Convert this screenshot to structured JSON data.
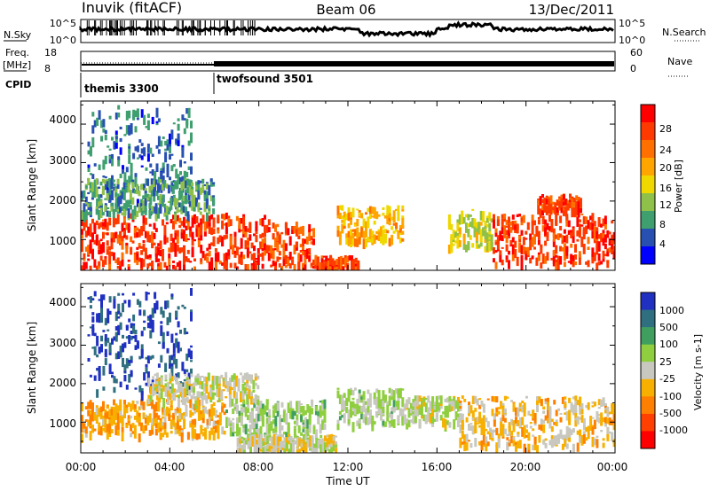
{
  "header": {
    "station": "Inuvik (fitACF)",
    "beam": "Beam 06",
    "date": "13/Dec/2011"
  },
  "noise_panel": {
    "left_label": "N.Sky",
    "right_label": "N.Search",
    "left_ticks": [
      "10^5",
      "10^0"
    ],
    "right_ticks": [
      "10^5",
      "10^0"
    ]
  },
  "freq_panel": {
    "left_label_1": "Freq.",
    "left_label_2": "[MHz]",
    "right_label": "Nave",
    "left_ticks": [
      "18",
      "8"
    ],
    "right_ticks": [
      "60",
      "0"
    ]
  },
  "cpid_panel": {
    "label": "CPID",
    "segments": [
      {
        "name": "themis 3300",
        "start_hour": 0,
        "end_hour": 6
      },
      {
        "name": "twofsound 3501",
        "start_hour": 6,
        "end_hour": 24
      }
    ]
  },
  "time_axis": {
    "label": "Time UT",
    "tick_labels": [
      "00:00",
      "04:00",
      "08:00",
      "12:00",
      "16:00",
      "20:00",
      "00:00"
    ]
  },
  "range_axis": {
    "label": "Slant Range [km]",
    "tick_labels": [
      "1000",
      "2000",
      "3000",
      "4000"
    ]
  },
  "power_colorbar": {
    "label": "Power [dB]",
    "tick_labels": [
      "28",
      "24",
      "20",
      "16",
      "12",
      "8",
      "4"
    ],
    "colors": [
      "#ff0000",
      "#ff3a00",
      "#ff7000",
      "#ffa500",
      "#eed800",
      "#8fc04a",
      "#3f9f6f",
      "#2850b0",
      "#0000ff"
    ]
  },
  "velocity_colorbar": {
    "label": "Velocity [m s-1]",
    "tick_labels": [
      "1000",
      "500",
      "100",
      "25",
      "-25",
      "-100",
      "-500",
      "-1000"
    ],
    "colors": [
      "#2030c0",
      "#2f6f7f",
      "#3f9f5f",
      "#8fcf3f",
      "#c8c8c0",
      "#f8b000",
      "#ff8000",
      "#ff4000",
      "#ff0000"
    ]
  },
  "chart_data": [
    {
      "type": "heatmap",
      "title": "Power",
      "xlabel": "Time UT",
      "ylabel": "Slant Range [km]",
      "xlim": [
        0,
        24
      ],
      "ylim": [
        200,
        4600
      ],
      "colorbar_label": "Power [dB]",
      "colorbar_range": [
        0,
        30
      ],
      "bands": [
        {
          "hour_start": 0.0,
          "hour_end": 8.5,
          "range_low": 300,
          "range_high": 1700,
          "value": 27
        },
        {
          "hour_start": 8.5,
          "hour_end": 10.5,
          "range_low": 300,
          "range_high": 1500,
          "value": 26
        },
        {
          "hour_start": 10.5,
          "hour_end": 12.5,
          "range_low": 300,
          "range_high": 600,
          "value": 26
        },
        {
          "hour_start": 11.5,
          "hour_end": 14.5,
          "range_low": 1000,
          "range_high": 1900,
          "value": 18
        },
        {
          "hour_start": 16.5,
          "hour_end": 18.5,
          "range_low": 800,
          "range_high": 1800,
          "value": 14
        },
        {
          "hour_start": 18.5,
          "hour_end": 24.0,
          "range_low": 400,
          "range_high": 1700,
          "value": 27
        },
        {
          "hour_start": 0.3,
          "hour_end": 5.0,
          "range_low": 1800,
          "range_high": 4500,
          "value": 5
        },
        {
          "hour_start": 0.0,
          "hour_end": 6.0,
          "range_low": 1700,
          "range_high": 2600,
          "value": 8
        },
        {
          "hour_start": 20.5,
          "hour_end": 22.5,
          "range_low": 1800,
          "range_high": 2200,
          "value": 26
        }
      ]
    },
    {
      "type": "heatmap",
      "title": "Velocity",
      "xlabel": "Time UT",
      "ylabel": "Slant Range [km]",
      "xlim": [
        0,
        24
      ],
      "ylim": [
        200,
        4600
      ],
      "colorbar_label": "Velocity [m s-1]",
      "colorbar_range": [
        -1000,
        1000
      ],
      "bands": [
        {
          "hour_start": 0.0,
          "hour_end": 6.5,
          "range_low": 700,
          "range_high": 1600,
          "value": -300
        },
        {
          "hour_start": 6.5,
          "hour_end": 11.0,
          "range_low": 700,
          "range_high": 1600,
          "value": 200
        },
        {
          "hour_start": 7.0,
          "hour_end": 11.5,
          "range_low": 300,
          "range_high": 700,
          "value": 0
        },
        {
          "hour_start": 11.5,
          "hour_end": 14.5,
          "range_low": 1000,
          "range_high": 1900,
          "value": 150
        },
        {
          "hour_start": 14.5,
          "hour_end": 17.0,
          "range_low": 1000,
          "range_high": 1700,
          "value": 80
        },
        {
          "hour_start": 17.0,
          "hour_end": 24.0,
          "range_low": 400,
          "range_high": 1700,
          "value": -200
        },
        {
          "hour_start": 0.3,
          "hour_end": 5.0,
          "range_low": 1800,
          "range_high": 4500,
          "value": 900
        },
        {
          "hour_start": 3.0,
          "hour_end": 8.0,
          "range_low": 1600,
          "range_high": 2300,
          "value": 0
        }
      ]
    }
  ]
}
